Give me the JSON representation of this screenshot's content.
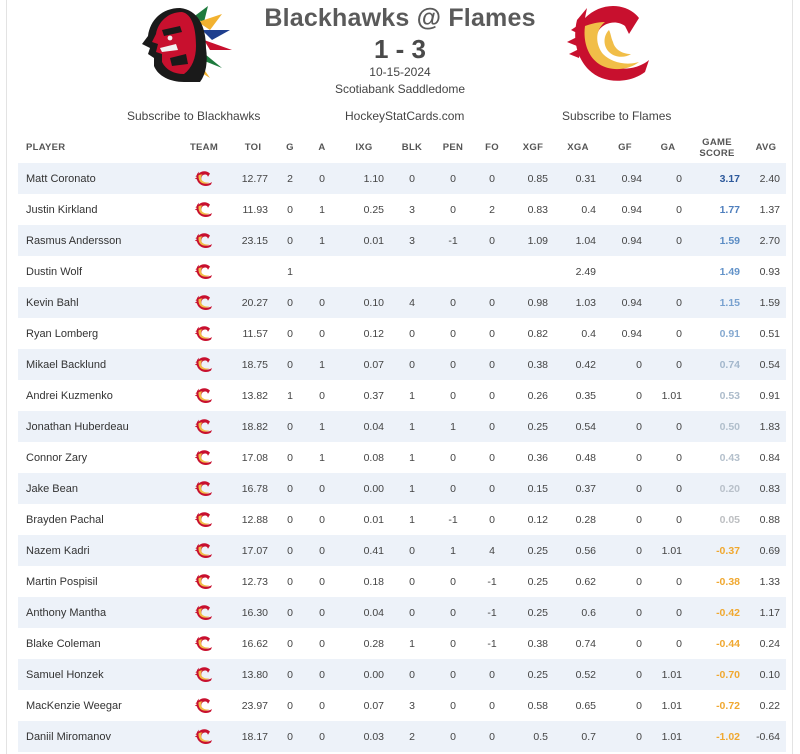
{
  "game": {
    "title": "Blackhawks @ Flames",
    "score": "1 - 3",
    "date": "10-15-2024",
    "venue": "Scotiabank Saddledome",
    "home_logo": "blackhawks-logo",
    "away_logo": "flames-logo"
  },
  "links": {
    "subscribe_home": "Subscribe to Blackhawks",
    "site": "HockeyStatCards.com",
    "subscribe_away": "Subscribe to Flames"
  },
  "columns": {
    "player": "PLAYER",
    "team": "TEAM",
    "toi": "TOI",
    "g": "G",
    "a": "A",
    "ixg": "IXG",
    "blk": "BLK",
    "pen": "PEN",
    "fo": "FO",
    "xgf": "XGF",
    "xga": "XGA",
    "gf": "GF",
    "ga": "GA",
    "game_score_1": "GAME",
    "game_score_2": "SCORE",
    "avg": "AVG"
  },
  "colors": {
    "row_stripe": "#edf2f9",
    "gs_high": "#2e5a9c",
    "gs_mid": "#5b8cc4",
    "gs_low": "#9fb4cb",
    "gs_neutral": "#b7b7b7",
    "gs_negative": "#f0a830",
    "flames_red": "#c8102e",
    "flames_yellow": "#f1be48"
  },
  "rows": [
    {
      "player": "Matt Coronato",
      "team": "flames-icon",
      "toi": "12.77",
      "g": "2",
      "a": "0",
      "ixg": "1.10",
      "blk": "0",
      "pen": "0",
      "fo": "0",
      "xgf": "0.85",
      "xga": "0.31",
      "gf": "0.94",
      "ga": "0",
      "gs": "3.17",
      "gs_color": "#2e5a9c",
      "avg": "2.40"
    },
    {
      "player": "Justin Kirkland",
      "team": "flames-icon",
      "toi": "11.93",
      "g": "0",
      "a": "1",
      "ixg": "0.25",
      "blk": "3",
      "pen": "0",
      "fo": "2",
      "xgf": "0.83",
      "xga": "0.4",
      "gf": "0.94",
      "ga": "0",
      "gs": "1.77",
      "gs_color": "#4f7fbd",
      "avg": "1.37"
    },
    {
      "player": "Rasmus Andersson",
      "team": "flames-icon",
      "toi": "23.15",
      "g": "0",
      "a": "1",
      "ixg": "0.01",
      "blk": "3",
      "pen": "-1",
      "fo": "0",
      "xgf": "1.09",
      "xga": "1.04",
      "gf": "0.94",
      "ga": "0",
      "gs": "1.59",
      "gs_color": "#5b8cc4",
      "avg": "2.70"
    },
    {
      "player": "Dustin Wolf",
      "team": "flames-icon",
      "toi": "",
      "g": "1",
      "a": "",
      "ixg": "",
      "blk": "",
      "pen": "",
      "fo": "",
      "xgf": "",
      "xga": "2.49",
      "gf": "",
      "ga": "",
      "gs": "1.49",
      "gs_color": "#6393c9",
      "avg": "0.93"
    },
    {
      "player": "Kevin Bahl",
      "team": "flames-icon",
      "toi": "20.27",
      "g": "0",
      "a": "0",
      "ixg": "0.10",
      "blk": "4",
      "pen": "0",
      "fo": "0",
      "xgf": "0.98",
      "xga": "1.03",
      "gf": "0.94",
      "ga": "0",
      "gs": "1.15",
      "gs_color": "#78a1cf",
      "avg": "1.59"
    },
    {
      "player": "Ryan Lomberg",
      "team": "flames-icon",
      "toi": "11.57",
      "g": "0",
      "a": "0",
      "ixg": "0.12",
      "blk": "0",
      "pen": "0",
      "fo": "0",
      "xgf": "0.82",
      "xga": "0.4",
      "gf": "0.94",
      "ga": "0",
      "gs": "0.91",
      "gs_color": "#86a9d0",
      "avg": "0.51"
    },
    {
      "player": "Mikael Backlund",
      "team": "flames-icon",
      "toi": "18.75",
      "g": "0",
      "a": "1",
      "ixg": "0.07",
      "blk": "0",
      "pen": "0",
      "fo": "0",
      "xgf": "0.38",
      "xga": "0.42",
      "gf": "0",
      "ga": "0",
      "gs": "0.74",
      "gs_color": "#a3b7cc",
      "avg": "0.54"
    },
    {
      "player": "Andrei Kuzmenko",
      "team": "flames-icon",
      "toi": "13.82",
      "g": "1",
      "a": "0",
      "ixg": "0.37",
      "blk": "1",
      "pen": "0",
      "fo": "0",
      "xgf": "0.26",
      "xga": "0.35",
      "gf": "0",
      "ga": "1.01",
      "gs": "0.53",
      "gs_color": "#adbccb",
      "avg": "0.91"
    },
    {
      "player": "Jonathan Huberdeau",
      "team": "flames-icon",
      "toi": "18.82",
      "g": "0",
      "a": "1",
      "ixg": "0.04",
      "blk": "1",
      "pen": "1",
      "fo": "0",
      "xgf": "0.25",
      "xga": "0.54",
      "gf": "0",
      "ga": "0",
      "gs": "0.50",
      "gs_color": "#b1bfcc",
      "avg": "1.83"
    },
    {
      "player": "Connor Zary",
      "team": "flames-icon",
      "toi": "17.08",
      "g": "0",
      "a": "1",
      "ixg": "0.08",
      "blk": "1",
      "pen": "0",
      "fo": "0",
      "xgf": "0.36",
      "xga": "0.48",
      "gf": "0",
      "ga": "0",
      "gs": "0.43",
      "gs_color": "#b4c0cc",
      "avg": "0.84"
    },
    {
      "player": "Jake Bean",
      "team": "flames-icon",
      "toi": "16.78",
      "g": "0",
      "a": "0",
      "ixg": "0.00",
      "blk": "1",
      "pen": "0",
      "fo": "0",
      "xgf": "0.15",
      "xga": "0.37",
      "gf": "0",
      "ga": "0",
      "gs": "0.20",
      "gs_color": "#b9c1ca",
      "avg": "0.83"
    },
    {
      "player": "Brayden Pachal",
      "team": "flames-icon",
      "toi": "12.88",
      "g": "0",
      "a": "0",
      "ixg": "0.01",
      "blk": "1",
      "pen": "-1",
      "fo": "0",
      "xgf": "0.12",
      "xga": "0.28",
      "gf": "0",
      "ga": "0",
      "gs": "0.05",
      "gs_color": "#bdbfc2",
      "avg": "0.88"
    },
    {
      "player": "Nazem Kadri",
      "team": "flames-icon",
      "toi": "17.07",
      "g": "0",
      "a": "0",
      "ixg": "0.41",
      "blk": "0",
      "pen": "1",
      "fo": "4",
      "xgf": "0.25",
      "xga": "0.56",
      "gf": "0",
      "ga": "1.01",
      "gs": "-0.37",
      "gs_color": "#f0a830",
      "avg": "0.69"
    },
    {
      "player": "Martin Pospisil",
      "team": "flames-icon",
      "toi": "12.73",
      "g": "0",
      "a": "0",
      "ixg": "0.18",
      "blk": "0",
      "pen": "0",
      "fo": "-1",
      "xgf": "0.25",
      "xga": "0.62",
      "gf": "0",
      "ga": "0",
      "gs": "-0.38",
      "gs_color": "#f0a830",
      "avg": "1.33"
    },
    {
      "player": "Anthony Mantha",
      "team": "flames-icon",
      "toi": "16.30",
      "g": "0",
      "a": "0",
      "ixg": "0.04",
      "blk": "0",
      "pen": "0",
      "fo": "-1",
      "xgf": "0.25",
      "xga": "0.6",
      "gf": "0",
      "ga": "0",
      "gs": "-0.42",
      "gs_color": "#f0a830",
      "avg": "1.17"
    },
    {
      "player": "Blake Coleman",
      "team": "flames-icon",
      "toi": "16.62",
      "g": "0",
      "a": "0",
      "ixg": "0.28",
      "blk": "1",
      "pen": "0",
      "fo": "-1",
      "xgf": "0.38",
      "xga": "0.74",
      "gf": "0",
      "ga": "0",
      "gs": "-0.44",
      "gs_color": "#f0a830",
      "avg": "0.24"
    },
    {
      "player": "Samuel Honzek",
      "team": "flames-icon",
      "toi": "13.80",
      "g": "0",
      "a": "0",
      "ixg": "0.00",
      "blk": "0",
      "pen": "0",
      "fo": "0",
      "xgf": "0.25",
      "xga": "0.52",
      "gf": "0",
      "ga": "1.01",
      "gs": "-0.70",
      "gs_color": "#f0a830",
      "avg": "0.10"
    },
    {
      "player": "MacKenzie Weegar",
      "team": "flames-icon",
      "toi": "23.97",
      "g": "0",
      "a": "0",
      "ixg": "0.07",
      "blk": "3",
      "pen": "0",
      "fo": "0",
      "xgf": "0.58",
      "xga": "0.65",
      "gf": "0",
      "ga": "1.01",
      "gs": "-0.72",
      "gs_color": "#f0a830",
      "avg": "0.22"
    },
    {
      "player": "Daniil Miromanov",
      "team": "flames-icon",
      "toi": "18.17",
      "g": "0",
      "a": "0",
      "ixg": "0.03",
      "blk": "2",
      "pen": "0",
      "fo": "0",
      "xgf": "0.5",
      "xga": "0.7",
      "gf": "0",
      "ga": "1.01",
      "gs": "-1.02",
      "gs_color": "#f0a830",
      "avg": "-0.64"
    }
  ]
}
